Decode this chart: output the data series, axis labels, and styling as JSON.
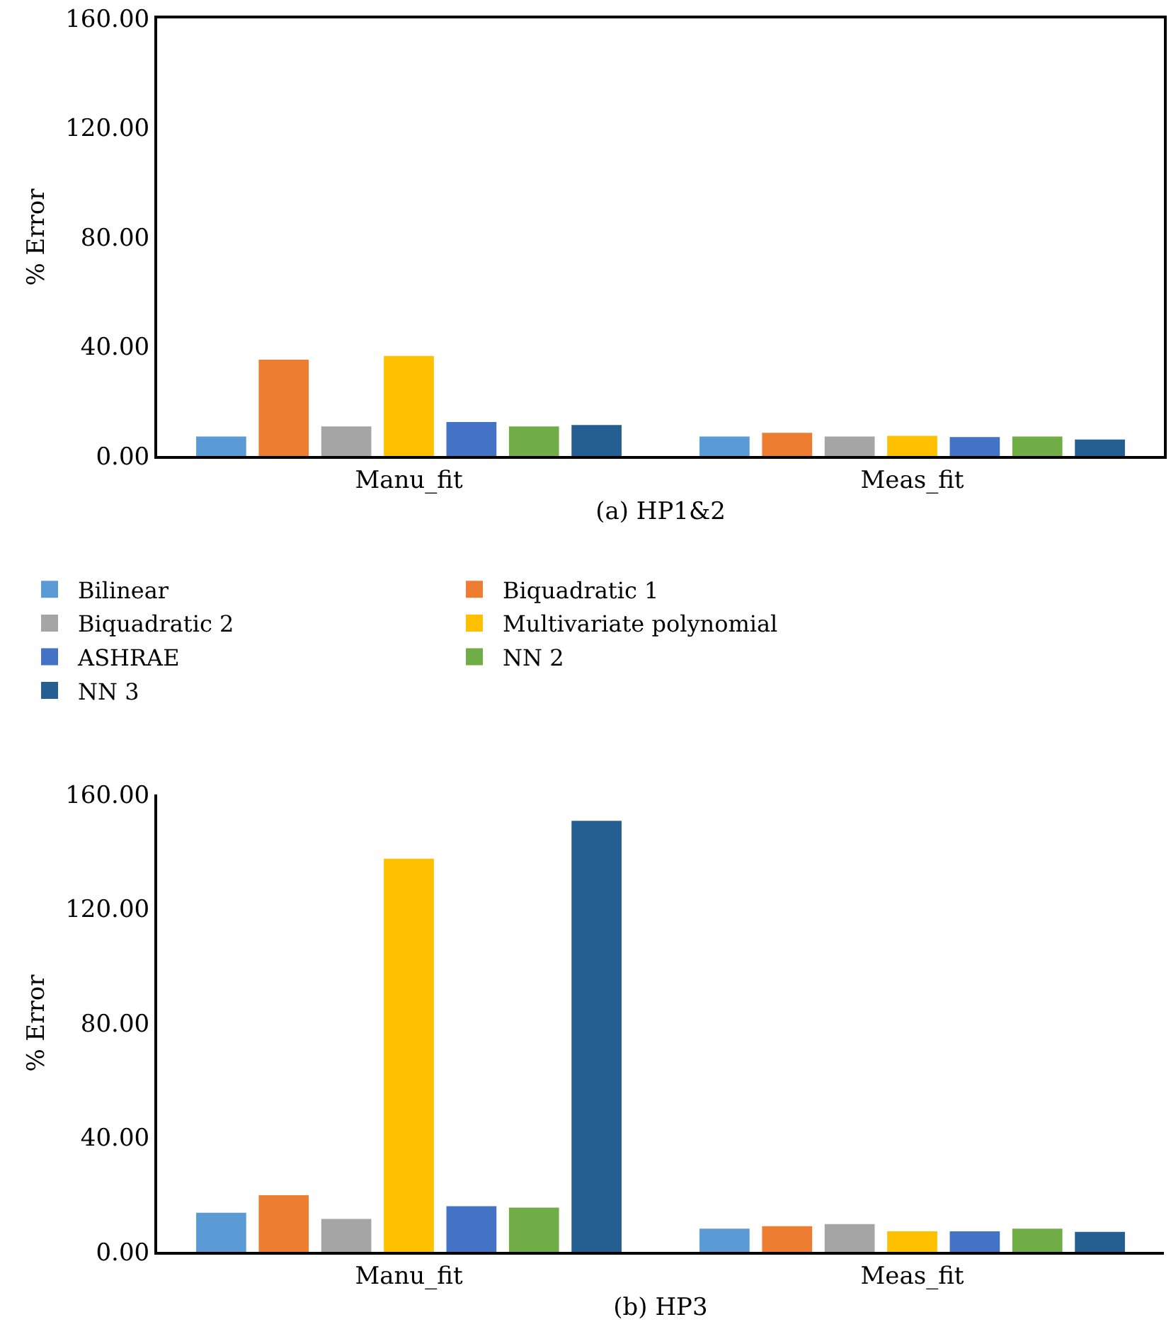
{
  "chart_data": [
    {
      "type": "bar",
      "xlabel": "(a) HP1&2",
      "ylabel": "% Error",
      "categories": [
        "Manu_fit",
        "Meas_fit"
      ],
      "series": [
        {
          "name": "Bilinear",
          "color": "#5b9bd5",
          "values": [
            7.1,
            7.1
          ]
        },
        {
          "name": "Biquadratic 1",
          "color": "#ed7d31",
          "values": [
            35.2,
            8.5
          ]
        },
        {
          "name": "Biquadratic 2",
          "color": "#a5a5a5",
          "values": [
            10.8,
            7.1
          ]
        },
        {
          "name": "Multivariate polynomial",
          "color": "#ffc000",
          "values": [
            36.6,
            7.4
          ]
        },
        {
          "name": "ASHRAE",
          "color": "#4472c4",
          "values": [
            12.4,
            6.9
          ]
        },
        {
          "name": "NN 2",
          "color": "#70ad47",
          "values": [
            10.8,
            7.1
          ]
        },
        {
          "name": "NN 3",
          "color": "#255e91",
          "values": [
            11.3,
            6.0
          ]
        }
      ],
      "ylim": [
        0,
        160
      ],
      "yticks": [
        {
          "value": 0,
          "label": "0.00"
        },
        {
          "value": 40,
          "label": "40.00"
        },
        {
          "value": 80,
          "label": "80.00"
        },
        {
          "value": 120,
          "label": "120.00"
        },
        {
          "value": 160,
          "label": "160.00"
        }
      ],
      "grid": false,
      "legend": "bottom"
    },
    {
      "type": "bar",
      "xlabel": "(b) HP3",
      "ylabel": "% Error",
      "categories": [
        "Manu_fit",
        "Meas_fit"
      ],
      "series": [
        {
          "color": "#5b9bd5",
          "values": [
            13.7,
            8.1
          ]
        },
        {
          "color": "#ed7d31",
          "values": [
            19.8,
            9.0
          ]
        },
        {
          "color": "#a5a5a5",
          "values": [
            11.5,
            9.7
          ]
        },
        {
          "color": "#ffc000",
          "values": [
            137.5,
            7.2
          ]
        },
        {
          "color": "#4472c4",
          "values": [
            16.0,
            7.2
          ]
        },
        {
          "color": "#70ad47",
          "values": [
            15.5,
            8.1
          ]
        },
        {
          "color": "#255e91",
          "values": [
            150.8,
            7.0
          ]
        }
      ],
      "ylim": [
        0,
        160
      ],
      "yticks": [
        {
          "value": 0,
          "label": "0.00"
        },
        {
          "value": 40,
          "label": "40.00"
        },
        {
          "value": 80,
          "label": "80.00"
        },
        {
          "value": 120,
          "label": "120.00"
        },
        {
          "value": 160,
          "label": "160.00"
        }
      ],
      "grid": false,
      "legend": false
    }
  ]
}
